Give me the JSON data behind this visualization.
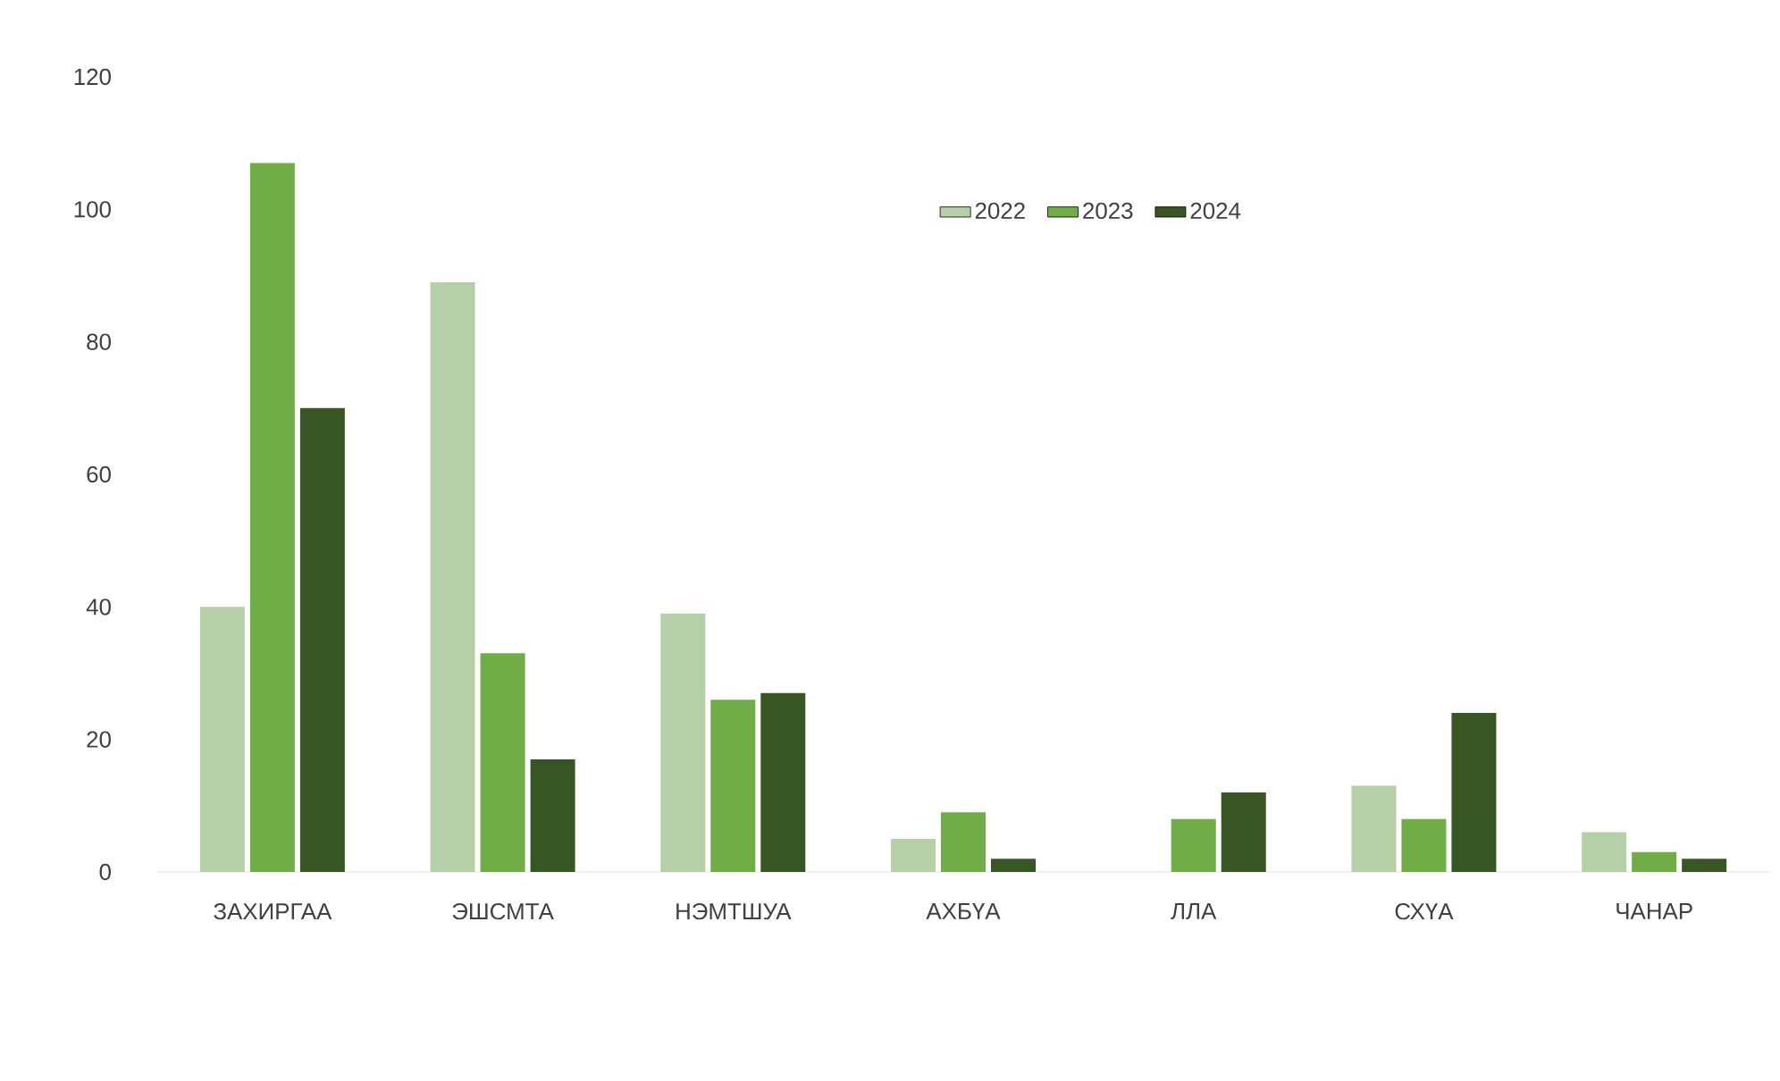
{
  "chart_data": {
    "type": "bar",
    "categories": [
      "ЗАХИРГАА",
      "ЭШСМТА",
      "НЭМТШУА",
      "АХБҮА",
      "ЛЛА",
      "СХҮА",
      "ЧАНАР"
    ],
    "series": [
      {
        "name": "2022",
        "color": "#b5d0a6",
        "values": [
          40,
          89,
          39,
          5,
          0,
          13,
          6
        ]
      },
      {
        "name": "2023",
        "color": "#70ad47",
        "values": [
          107,
          33,
          26,
          9,
          8,
          8,
          3
        ]
      },
      {
        "name": "2024",
        "color": "#375623",
        "values": [
          70,
          17,
          27,
          2,
          12,
          24,
          2
        ]
      }
    ],
    "ylim": [
      0,
      120
    ],
    "yticks": [
      0,
      20,
      40,
      60,
      80,
      100,
      120
    ],
    "grid": false,
    "legend": "top"
  }
}
